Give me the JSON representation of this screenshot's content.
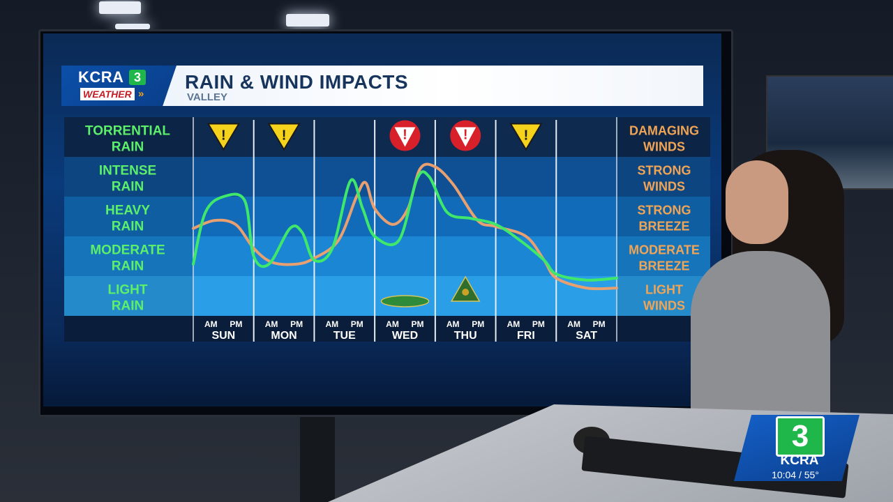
{
  "header": {
    "logo_name": "KCRA",
    "logo_number": "3",
    "logo_sub": "WEATHER",
    "title": "RAIN & WIND IMPACTS",
    "subtitle": "VALLEY"
  },
  "bug": {
    "number": "3",
    "name": "KCRA",
    "time_temp": "10:04 / 55°"
  },
  "chart_data": {
    "type": "line",
    "title": "RAIN & WIND IMPACTS",
    "subtitle": "VALLEY",
    "left_axis_levels": [
      [
        "LIGHT",
        "RAIN"
      ],
      [
        "MODERATE",
        "RAIN"
      ],
      [
        "HEAVY",
        "RAIN"
      ],
      [
        "INTENSE",
        "RAIN"
      ],
      [
        "TORRENTIAL",
        "RAIN"
      ]
    ],
    "right_axis_levels": [
      [
        "LIGHT",
        "WINDS"
      ],
      [
        "MODERATE",
        "BREEZE"
      ],
      [
        "STRONG",
        "BREEZE"
      ],
      [
        "STRONG",
        "WINDS"
      ],
      [
        "DAMAGING",
        "WINDS"
      ]
    ],
    "days": [
      "SUN",
      "MON",
      "TUE",
      "WED",
      "THU",
      "FRI",
      "SAT"
    ],
    "half_day_labels": [
      "AM",
      "PM"
    ],
    "ylim": [
      0,
      5
    ],
    "alerts": [
      {
        "day": "SUN",
        "type": "caution",
        "color": "#f5d21b"
      },
      {
        "day": "MON",
        "type": "caution",
        "color": "#f5d21b"
      },
      {
        "day": "WED",
        "type": "warning",
        "color": "#d8202a"
      },
      {
        "day": "THU",
        "type": "warning",
        "color": "#d8202a"
      },
      {
        "day": "FRI",
        "type": "caution",
        "color": "#f5d21b"
      }
    ],
    "series": [
      {
        "color": "#3fe86a",
        "x": [
          0,
          0.2,
          0.5,
          0.85,
          1.0,
          1.25,
          1.6,
          1.8,
          2.0,
          2.3,
          2.6,
          2.8,
          3.0,
          3.4,
          3.7,
          3.9,
          4.2,
          4.6,
          5.0,
          5.4,
          5.8,
          6.0,
          6.5,
          7.0
        ],
        "y": [
          0.8,
          2.1,
          2.5,
          2.4,
          1.0,
          0.8,
          1.7,
          1.6,
          0.9,
          1.2,
          2.9,
          2.2,
          1.5,
          1.4,
          2.95,
          3.0,
          2.1,
          1.95,
          1.8,
          1.4,
          0.9,
          0.55,
          0.4,
          0.45
        ]
      },
      {
        "color": "#e8a070",
        "x": [
          0,
          0.35,
          0.7,
          1.0,
          1.3,
          1.7,
          2.0,
          2.4,
          2.7,
          2.85,
          3.0,
          3.3,
          3.55,
          3.75,
          4.0,
          4.3,
          4.7,
          5.0,
          5.5,
          5.8,
          6.0,
          6.5,
          7.0
        ],
        "y": [
          1.7,
          1.9,
          1.8,
          1.2,
          0.85,
          0.8,
          0.95,
          1.4,
          2.5,
          2.85,
          2.2,
          1.8,
          2.2,
          3.2,
          3.25,
          2.8,
          1.9,
          1.75,
          1.5,
          0.9,
          0.45,
          0.2,
          0.2
        ]
      }
    ]
  }
}
